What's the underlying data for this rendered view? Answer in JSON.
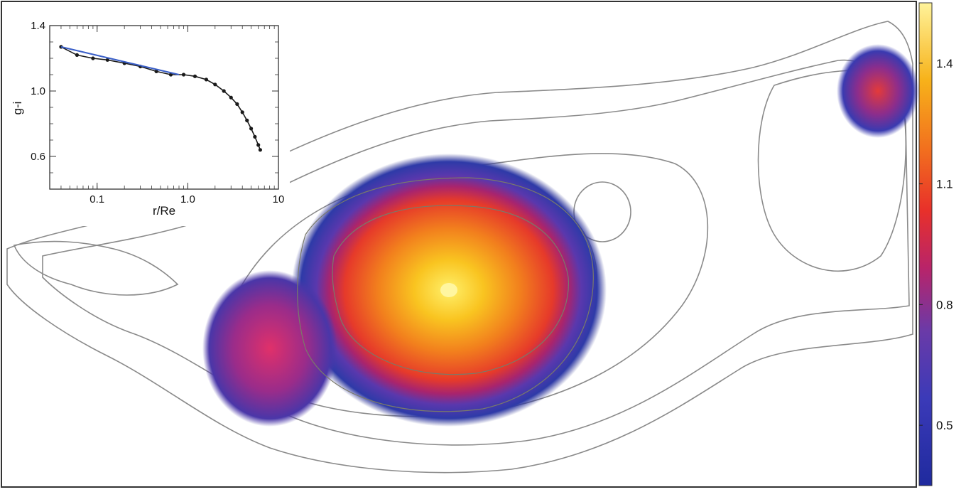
{
  "colors": {
    "colormap": [
      "#1f2a9e",
      "#3b3ab8",
      "#6a3aa8",
      "#b8246a",
      "#e8302a",
      "#f2711e",
      "#f7b21a",
      "#fff39a"
    ],
    "contour": "#8a8a8a",
    "model_line": "#3a5fc8",
    "profile_points": "#1a1a1a"
  },
  "colorbar": {
    "tick_labels": [
      "1.4",
      "1.1",
      "0.8",
      "0.5"
    ],
    "tick_values": [
      1.4,
      1.1,
      0.8,
      0.5
    ],
    "range": [
      0.35,
      1.55
    ]
  },
  "chart_data": [
    {
      "type": "heatmap",
      "description_in_image": "",
      "colorbar_ticks": [
        1.4,
        1.1,
        0.8,
        0.5
      ]
    },
    {
      "type": "scatter",
      "xlabel": "r/Re",
      "ylabel": "g-i",
      "x_scale": "log",
      "xlim": [
        0.03,
        10
      ],
      "ylim": [
        0.4,
        1.4
      ],
      "x_tick_labels": [
        "0.1",
        "1.0",
        "10"
      ],
      "x_ticks": [
        0.1,
        1.0,
        10
      ],
      "y_tick_labels": [
        "0.6",
        "1.0",
        "1.4"
      ],
      "y_ticks": [
        0.6,
        1.0,
        1.4
      ],
      "series": [
        {
          "style": "points",
          "x": [
            0.04,
            0.06,
            0.09,
            0.13,
            0.2,
            0.3,
            0.45,
            0.65,
            0.9,
            1.2,
            1.6,
            2.0,
            2.5,
            3.0,
            3.5,
            4.0,
            4.5,
            5.0,
            5.5,
            6.0,
            6.3
          ],
          "y": [
            1.27,
            1.22,
            1.2,
            1.19,
            1.17,
            1.15,
            1.12,
            1.1,
            1.1,
            1.09,
            1.07,
            1.04,
            1.0,
            0.96,
            0.92,
            0.87,
            0.82,
            0.77,
            0.72,
            0.67,
            0.64
          ]
        },
        {
          "style": "line",
          "x": [
            0.04,
            0.8
          ],
          "y": [
            1.27,
            1.1
          ]
        }
      ]
    }
  ]
}
